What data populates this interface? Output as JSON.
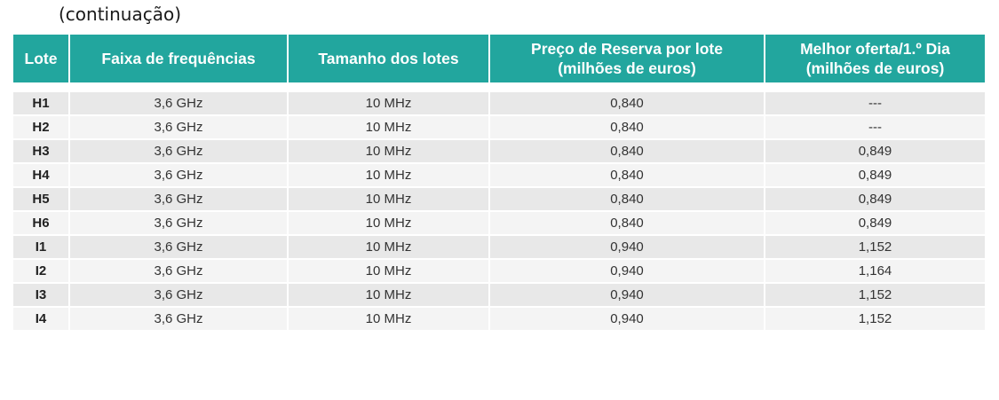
{
  "caption": "(continuação)",
  "table": {
    "headers": [
      "Lote",
      "Faixa de frequências",
      "Tamanho dos lotes",
      "Preço de Reserva por lote\n(milhões de euros)",
      "Melhor oferta/1.º Dia\n(milhões de euros)"
    ],
    "rows": [
      [
        "H1",
        "3,6 GHz",
        "10 MHz",
        "0,840",
        "---"
      ],
      [
        "H2",
        "3,6 GHz",
        "10 MHz",
        "0,840",
        "---"
      ],
      [
        "H3",
        "3,6 GHz",
        "10 MHz",
        "0,840",
        "0,849"
      ],
      [
        "H4",
        "3,6 GHz",
        "10 MHz",
        "0,840",
        "0,849"
      ],
      [
        "H5",
        "3,6 GHz",
        "10 MHz",
        "0,840",
        "0,849"
      ],
      [
        "H6",
        "3,6 GHz",
        "10 MHz",
        "0,840",
        "0,849"
      ],
      [
        "I1",
        "3,6 GHz",
        "10 MHz",
        "0,940",
        "1,152"
      ],
      [
        "I2",
        "3,6 GHz",
        "10 MHz",
        "0,940",
        "1,164"
      ],
      [
        "I3",
        "3,6 GHz",
        "10 MHz",
        "0,940",
        "1,152"
      ],
      [
        "I4",
        "3,6 GHz",
        "10 MHz",
        "0,940",
        "1,152"
      ]
    ]
  },
  "colors": {
    "header_bg": "#22a69e",
    "row_odd": "#e8e8e8",
    "row_even": "#f4f4f4"
  }
}
